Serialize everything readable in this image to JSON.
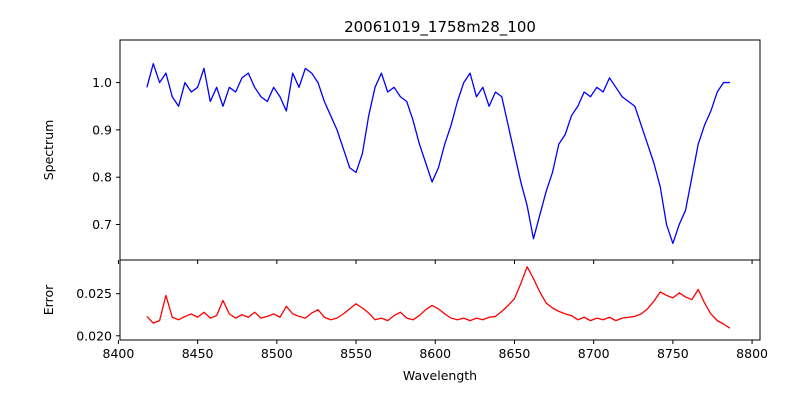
{
  "chart_data": [
    {
      "type": "line",
      "title": "20061019_1758m28_100",
      "ylabel": "Spectrum",
      "xlabel": "",
      "xlim": [
        8401,
        8805
      ],
      "ylim": [
        0.625,
        1.09
      ],
      "xticks": [
        8400,
        8450,
        8500,
        8550,
        8600,
        8650,
        8700,
        8750,
        8800
      ],
      "yticks": [
        0.7,
        0.8,
        0.9,
        1.0
      ],
      "ytick_labels": [
        "0.7",
        "0.8",
        "0.9",
        "1.0"
      ],
      "grid": false,
      "color": "#0000ff",
      "x": [
        8418,
        8422,
        8426,
        8430,
        8434,
        8438,
        8442,
        8446,
        8450,
        8454,
        8458,
        8462,
        8466,
        8470,
        8474,
        8478,
        8482,
        8486,
        8490,
        8494,
        8498,
        8502,
        8506,
        8510,
        8514,
        8518,
        8522,
        8526,
        8530,
        8534,
        8538,
        8542,
        8546,
        8550,
        8554,
        8558,
        8562,
        8566,
        8570,
        8574,
        8578,
        8582,
        8586,
        8590,
        8594,
        8598,
        8602,
        8606,
        8610,
        8614,
        8618,
        8622,
        8626,
        8630,
        8634,
        8638,
        8642,
        8646,
        8650,
        8654,
        8658,
        8662,
        8666,
        8670,
        8674,
        8678,
        8682,
        8686,
        8690,
        8694,
        8698,
        8702,
        8706,
        8710,
        8714,
        8718,
        8722,
        8726,
        8730,
        8734,
        8738,
        8742,
        8746,
        8750,
        8754,
        8758,
        8762,
        8766,
        8770,
        8774,
        8778,
        8782,
        8786
      ],
      "values": [
        0.99,
        1.04,
        1.0,
        1.02,
        0.97,
        0.95,
        1.0,
        0.98,
        0.99,
        1.03,
        0.96,
        0.99,
        0.95,
        0.99,
        0.98,
        1.01,
        1.02,
        0.99,
        0.97,
        0.96,
        0.99,
        0.97,
        0.94,
        1.02,
        0.99,
        1.03,
        1.02,
        1.0,
        0.96,
        0.93,
        0.9,
        0.86,
        0.82,
        0.81,
        0.85,
        0.93,
        0.99,
        1.02,
        0.98,
        0.99,
        0.97,
        0.96,
        0.92,
        0.87,
        0.83,
        0.79,
        0.82,
        0.87,
        0.91,
        0.96,
        1.0,
        1.02,
        0.97,
        0.99,
        0.95,
        0.98,
        0.97,
        0.91,
        0.85,
        0.79,
        0.74,
        0.67,
        0.72,
        0.77,
        0.81,
        0.87,
        0.89,
        0.93,
        0.95,
        0.98,
        0.97,
        0.99,
        0.98,
        1.01,
        0.99,
        0.97,
        0.96,
        0.95,
        0.91,
        0.87,
        0.83,
        0.78,
        0.7,
        0.66,
        0.7,
        0.73,
        0.8,
        0.87,
        0.91,
        0.94,
        0.98,
        1.0,
        1.0
      ]
    },
    {
      "type": "line",
      "title": "",
      "ylabel": "Error",
      "xlabel": "Wavelength",
      "xlim": [
        8401,
        8805
      ],
      "ylim": [
        0.0195,
        0.029
      ],
      "xticks": [
        8400,
        8450,
        8500,
        8550,
        8600,
        8650,
        8700,
        8750,
        8800
      ],
      "yticks": [
        0.02,
        0.025
      ],
      "ytick_labels": [
        "0.020",
        "0.025"
      ],
      "grid": false,
      "color": "#ff0000",
      "x": [
        8418,
        8422,
        8426,
        8430,
        8434,
        8438,
        8442,
        8446,
        8450,
        8454,
        8458,
        8462,
        8466,
        8470,
        8474,
        8478,
        8482,
        8486,
        8490,
        8494,
        8498,
        8502,
        8506,
        8510,
        8514,
        8518,
        8522,
        8526,
        8530,
        8534,
        8538,
        8542,
        8546,
        8550,
        8554,
        8558,
        8562,
        8566,
        8570,
        8574,
        8578,
        8582,
        8586,
        8590,
        8594,
        8598,
        8602,
        8606,
        8610,
        8614,
        8618,
        8622,
        8626,
        8630,
        8634,
        8638,
        8642,
        8646,
        8650,
        8654,
        8658,
        8662,
        8666,
        8670,
        8674,
        8678,
        8682,
        8686,
        8690,
        8694,
        8698,
        8702,
        8706,
        8710,
        8714,
        8718,
        8722,
        8726,
        8730,
        8734,
        8738,
        8742,
        8746,
        8750,
        8754,
        8758,
        8762,
        8766,
        8770,
        8774,
        8778,
        8782,
        8786
      ],
      "values": [
        0.0223,
        0.0215,
        0.0218,
        0.0248,
        0.0222,
        0.0219,
        0.0223,
        0.0226,
        0.0222,
        0.0228,
        0.0221,
        0.0224,
        0.0242,
        0.0226,
        0.0221,
        0.0225,
        0.0222,
        0.0228,
        0.0221,
        0.0223,
        0.0226,
        0.0222,
        0.0235,
        0.0226,
        0.0223,
        0.0221,
        0.0227,
        0.0231,
        0.0222,
        0.0219,
        0.0221,
        0.0226,
        0.0232,
        0.0238,
        0.0233,
        0.0227,
        0.0219,
        0.0221,
        0.0218,
        0.0224,
        0.0228,
        0.0221,
        0.0219,
        0.0224,
        0.0231,
        0.0236,
        0.0232,
        0.0226,
        0.0221,
        0.0219,
        0.0221,
        0.0218,
        0.0221,
        0.0219,
        0.0222,
        0.0223,
        0.0229,
        0.0236,
        0.0244,
        0.0262,
        0.0282,
        0.0268,
        0.0252,
        0.0239,
        0.0233,
        0.0229,
        0.0226,
        0.0224,
        0.0219,
        0.0222,
        0.0218,
        0.0221,
        0.0219,
        0.0222,
        0.0218,
        0.0221,
        0.0222,
        0.0223,
        0.0226,
        0.0232,
        0.0241,
        0.0252,
        0.0248,
        0.0245,
        0.0251,
        0.0246,
        0.0243,
        0.0255,
        0.0239,
        0.0226,
        0.0218,
        0.0214,
        0.0209
      ]
    }
  ]
}
